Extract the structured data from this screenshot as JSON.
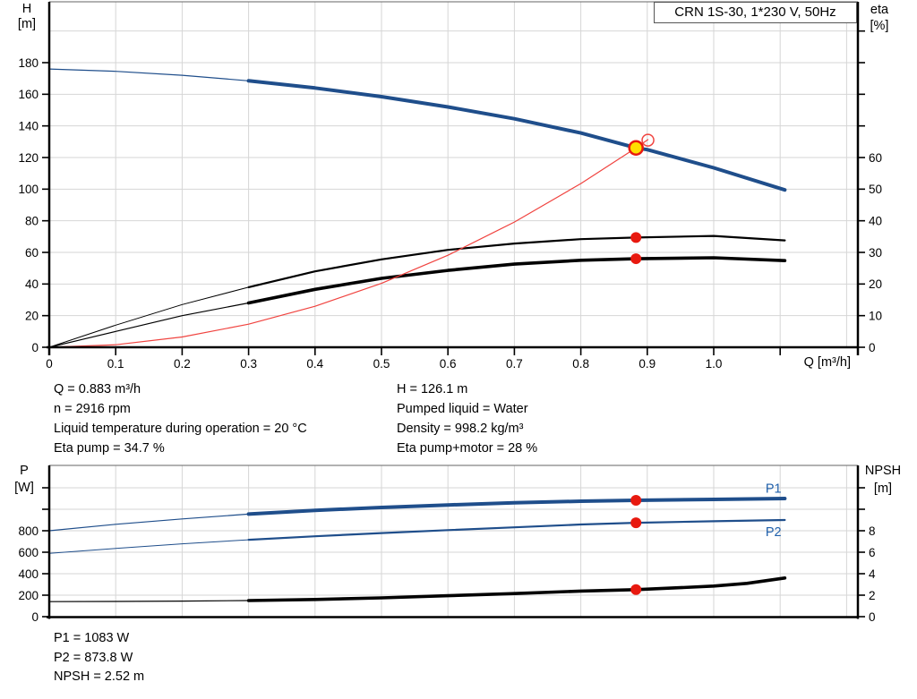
{
  "title_box": {
    "label": "CRN 1S-30, 1*230 V, 50Hz"
  },
  "colors": {
    "curve_blue": "#1f4e8b",
    "label_blue": "#2060ab",
    "marker_red": "#e8190f",
    "system_red": "#f0433f",
    "duty_yellow": "#ffdf00",
    "grid": "#d6d6d6",
    "border": "#666666",
    "axis": "#000000"
  },
  "annotations": {
    "left": [
      "Q = 0.883 m³/h",
      "n = 2916 rpm",
      "Liquid temperature during operation = 20 °C",
      "Eta pump = 34.7 %"
    ],
    "right": [
      "H = 126.1 m",
      "Pumped liquid = Water",
      "Density = 998.2 kg/m³",
      "Eta pump+motor = 28 %"
    ]
  },
  "footer": [
    "P1 = 1083 W",
    "P2 = 873.8 W",
    "NPSH = 2.52 m"
  ],
  "chart_data": [
    {
      "type": "line",
      "title": "CRN 1S-30, 1*230 V, 50Hz",
      "xlabel": "Q [m³/h]",
      "ylabel_lines_left": [
        "H",
        "[m]"
      ],
      "ylabel_lines_right": [
        "eta",
        "[%]"
      ],
      "xlim": [
        0,
        1.217
      ],
      "ylim_left": [
        0,
        218
      ],
      "ylim_right": [
        0,
        109
      ],
      "grid": true,
      "x_ticks": {
        "values": [
          0,
          0.1,
          0.2,
          0.3,
          0.4,
          0.5,
          0.6,
          0.7,
          0.8,
          0.9,
          1.0,
          1.1
        ],
        "labels": [
          "0",
          "0.1",
          "0.2",
          "0.3",
          "0.4",
          "0.5",
          "0.6",
          "0.7",
          "0.8",
          "0.9",
          "1.0",
          ""
        ]
      },
      "y_ticks_left": {
        "values": [
          0,
          20,
          40,
          60,
          80,
          100,
          120,
          140,
          160,
          180
        ],
        "labels": [
          "0",
          "20",
          "40",
          "60",
          "80",
          "100",
          "120",
          "140",
          "160",
          "180"
        ]
      },
      "y_ticks_right": {
        "values": [
          0,
          10,
          20,
          30,
          40,
          50,
          60,
          70,
          80,
          90,
          100
        ],
        "labels": [
          "0",
          "10",
          "20",
          "30",
          "40",
          "50",
          "60",
          "",
          "",
          "",
          ""
        ]
      },
      "series": [
        {
          "name": "head-curve",
          "axis": "left",
          "color": "#1f4e8b",
          "width_thin": 1.2,
          "width_thick": 4,
          "split": 0.3,
          "x": [
            0,
            0.1,
            0.2,
            0.3,
            0.4,
            0.5,
            0.6,
            0.7,
            0.8,
            0.883,
            0.9,
            1.0,
            1.107
          ],
          "y": [
            176,
            174.5,
            172,
            168.5,
            164,
            158.5,
            152,
            144.5,
            135.5,
            126.1,
            125,
            113.5,
            99.5
          ]
        },
        {
          "name": "eta-pump-curve",
          "axis": "right",
          "color": "#000000",
          "width_thin": 1,
          "width_thick": 2.2,
          "split": 0.3,
          "x": [
            0,
            0.05,
            0.1,
            0.2,
            0.3,
            0.4,
            0.5,
            0.6,
            0.7,
            0.8,
            0.883,
            1.0,
            1.107
          ],
          "y": [
            0,
            3.5,
            7,
            13.5,
            19,
            24,
            27.8,
            30.8,
            32.8,
            34.2,
            34.7,
            35.2,
            33.8
          ]
        },
        {
          "name": "eta-pump-motor-curve",
          "axis": "right",
          "color": "#000000",
          "width_thin": 1.2,
          "width_thick": 3.6,
          "split": 0.3,
          "x": [
            0,
            0.05,
            0.1,
            0.2,
            0.3,
            0.4,
            0.5,
            0.6,
            0.7,
            0.8,
            0.883,
            1.0,
            1.107
          ],
          "y": [
            0,
            2.5,
            5,
            10,
            14,
            18.3,
            21.8,
            24.3,
            26.3,
            27.5,
            28,
            28.3,
            27.4
          ]
        },
        {
          "name": "system-curve",
          "axis": "left",
          "color": "#f0433f",
          "width_thin": 1.2,
          "x": [
            0,
            0.1,
            0.2,
            0.3,
            0.4,
            0.5,
            0.6,
            0.7,
            0.8,
            0.883,
            0.901
          ],
          "y": [
            0,
            1.6,
            6.5,
            14.6,
            25.9,
            40.4,
            58.2,
            79.2,
            103.5,
            126.1,
            131.3
          ]
        }
      ],
      "markers": [
        {
          "name": "duty-point-marker",
          "type": "duty",
          "axis": "left",
          "x": 0.883,
          "y": 126.1
        },
        {
          "name": "open-point-marker",
          "type": "open",
          "axis": "left",
          "x": 0.901,
          "y": 131
        },
        {
          "name": "eta-pump-point-marker",
          "type": "dot",
          "axis": "right",
          "x": 0.883,
          "y": 34.7
        },
        {
          "name": "eta-motor-point-marker",
          "type": "dot",
          "axis": "right",
          "x": 0.883,
          "y": 28
        }
      ]
    },
    {
      "type": "line",
      "ylabel_lines_left": [
        "P",
        "[W]"
      ],
      "ylabel_lines_right": [
        "NPSH",
        "[m]"
      ],
      "xlim": [
        0,
        1.217
      ],
      "ylim_left": [
        0,
        1408
      ],
      "ylim_right": [
        0,
        14.1
      ],
      "grid": true,
      "y_ticks_left": {
        "values": [
          0,
          200,
          400,
          600,
          800,
          1000,
          1200
        ],
        "labels": [
          "0",
          "200",
          "400",
          "600",
          "800",
          "",
          ""
        ]
      },
      "y_ticks_right": {
        "values": [
          0,
          2,
          4,
          6,
          8,
          10,
          12
        ],
        "labels": [
          "0",
          "2",
          "4",
          "6",
          "8",
          "",
          ""
        ]
      },
      "series": [
        {
          "name": "p1-curve",
          "axis": "left",
          "color": "#1f4e8b",
          "width_thin": 1.2,
          "width_thick": 4,
          "split": 0.3,
          "x": [
            0,
            0.1,
            0.2,
            0.3,
            0.4,
            0.5,
            0.6,
            0.7,
            0.8,
            0.883,
            1.0,
            1.107
          ],
          "y": [
            800,
            860,
            910,
            955,
            990,
            1017,
            1040,
            1060,
            1075,
            1083,
            1092,
            1100
          ]
        },
        {
          "name": "p2-curve",
          "axis": "left",
          "color": "#1f4e8b",
          "width_thin": 1,
          "width_thick": 2.2,
          "split": 0.3,
          "x": [
            0,
            0.1,
            0.2,
            0.3,
            0.4,
            0.5,
            0.6,
            0.7,
            0.8,
            0.883,
            1.0,
            1.107
          ],
          "y": [
            590,
            635,
            678,
            716,
            748,
            778,
            806,
            832,
            858,
            873.8,
            888,
            900
          ]
        },
        {
          "name": "npsh-curve",
          "axis": "right",
          "color": "#000000",
          "width_thin": 1.2,
          "width_thick": 3.6,
          "split": 0.3,
          "x": [
            0,
            0.1,
            0.2,
            0.3,
            0.4,
            0.5,
            0.6,
            0.7,
            0.8,
            0.883,
            0.95,
            1.0,
            1.05,
            1.107
          ],
          "y": [
            1.4,
            1.42,
            1.45,
            1.5,
            1.6,
            1.75,
            1.95,
            2.15,
            2.38,
            2.52,
            2.7,
            2.85,
            3.1,
            3.6
          ]
        }
      ],
      "markers": [
        {
          "name": "p1-point-marker",
          "type": "dot",
          "axis": "left",
          "x": 0.883,
          "y": 1083
        },
        {
          "name": "p2-point-marker",
          "type": "dot",
          "axis": "left",
          "x": 0.883,
          "y": 873.8
        },
        {
          "name": "npsh-point-marker",
          "type": "dot",
          "axis": "right",
          "x": 0.883,
          "y": 2.52
        }
      ],
      "curve_labels": [
        {
          "text": "P1",
          "axis": "left",
          "q": 1.09,
          "v": 1195
        },
        {
          "text": "P2",
          "axis": "left",
          "q": 1.09,
          "v": 790
        }
      ]
    }
  ]
}
